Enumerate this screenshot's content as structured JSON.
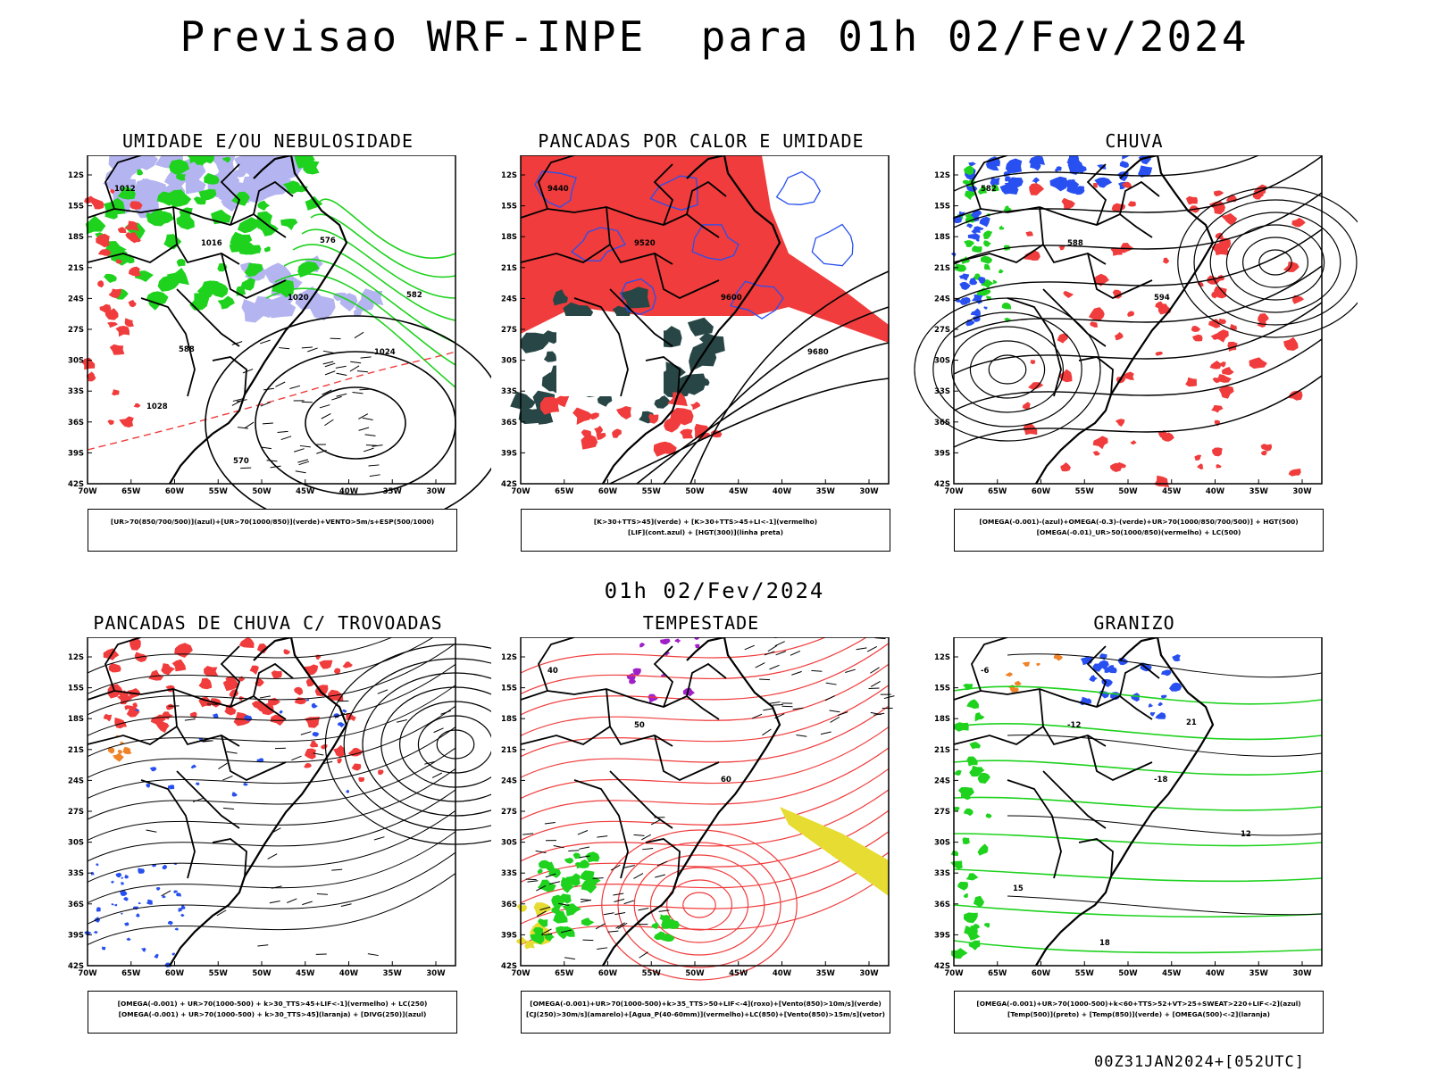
{
  "header": {
    "title": "Previsao WRF-INPE  para 01h 02/Fev/2024",
    "mid_title": "01h 02/Fev/2024",
    "footer": "00Z31JAN2024+[052UTC]"
  },
  "axes": {
    "lat_labels": [
      "12S",
      "15S",
      "18S",
      "21S",
      "24S",
      "27S",
      "30S",
      "33S",
      "36S",
      "39S",
      "42S"
    ],
    "lon_labels": [
      "70W",
      "65W",
      "60W",
      "55W",
      "50W",
      "45W",
      "40W",
      "35W",
      "30W"
    ]
  },
  "colors": {
    "red": "#f03c3c",
    "green": "#1ed21e",
    "blue": "#2850f0",
    "lavender": "#b4b4f0",
    "darkteal": "#284646",
    "purple": "#a020c8",
    "orange": "#f08228",
    "yellow": "#e6dc32",
    "black": "#000000"
  },
  "panels": [
    {
      "title": "UMIDADE E/OU NEBULOSIDADE",
      "legend": [
        "[UR>70(850/700/500)](azul)+[UR>70(1000/850)](verde)+VENTO>5m/s+ESP(500/1000)"
      ],
      "contour_labels": [
        "1012",
        "1016",
        "1020",
        "1024",
        "1028",
        "570",
        "576",
        "582",
        "588"
      ]
    },
    {
      "title": "PANCADAS POR CALOR E UMIDADE",
      "legend": [
        "[K>30+TTS>45](verde) + [K>30+TTS>45+LI<-1](vermelho)",
        "[LIF](cont.azul) + [HGT(300)](linha preta)"
      ],
      "contour_labels": [
        "9440",
        "9520",
        "9600",
        "9680"
      ]
    },
    {
      "title": "CHUVA",
      "legend": [
        "[OMEGA(-0.001)-(azul)+OMEGA(-0.3)-(verde)+UR>70(1000/850/700/500)] + HGT(500)",
        "[OMEGA(-0.01)_UR>50(1000/850)(vermelho) + LC(500)"
      ],
      "contour_labels": [
        "582",
        "588",
        "594"
      ]
    },
    {
      "title": "PANCADAS DE CHUVA C/ TROVOADAS",
      "legend": [
        "[OMEGA(-0.001) + UR>70(1000-500) + k>30_TTS>45+LIF<-1](vermelho) + LC(250)",
        "[OMEGA(-0.001) + UR>70(1000-500) + k>30_TTS>45](laranja) + [DIVG(250)](azul)"
      ],
      "contour_labels": []
    },
    {
      "title": "TEMPESTADE",
      "legend": [
        "[OMEGA(-0.001)+UR>70(1000-500)+k>35_TTS>50+LIF<-4](roxo)+[Vento(850)>10m/s](verde)",
        "[CJ(250)>30m/s](amarelo)+[Agua_P(40-60mm)](vermelho)+LC(850)+[Vento(850)>15m/s](vetor)"
      ],
      "contour_labels": [
        "40",
        "50",
        "60"
      ]
    },
    {
      "title": "GRANIZO",
      "legend": [
        "[OMEGA(-0.001)+UR>70(1000-500)+k<60+TTS>52+VT>25+SWEAT>220+LIF<-2](azul)",
        "[Temp(500)](preto) + [Temp(850)](verde) + [OMEGA(500)<-2](laranja)"
      ],
      "contour_labels": [
        "-6",
        "-12",
        "-18",
        "12",
        "15",
        "18",
        "21"
      ]
    }
  ]
}
